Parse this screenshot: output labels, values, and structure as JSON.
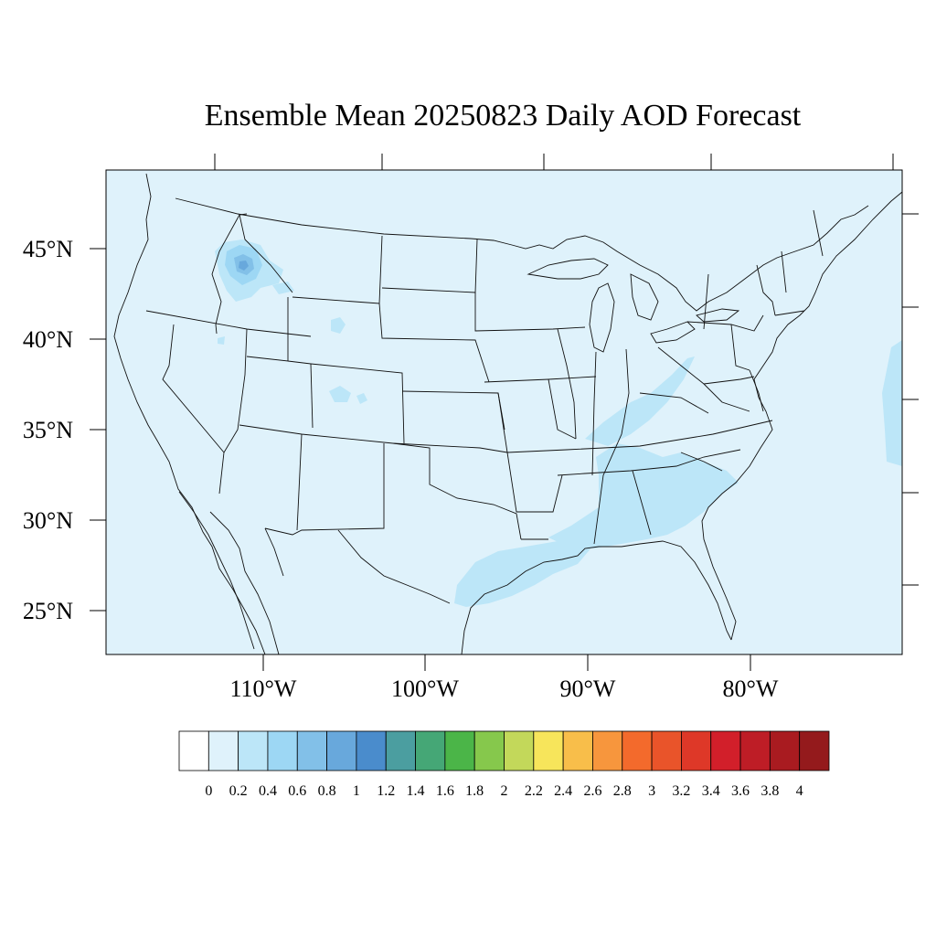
{
  "title": "Ensemble Mean 20250823 Daily AOD Forecast",
  "map": {
    "lat_labels": [
      "45°N",
      "40°N",
      "35°N",
      "30°N",
      "25°N"
    ],
    "lon_labels": [
      "110°W",
      "100°W",
      "90°W",
      "80°W"
    ],
    "background_color": "#dff2fb"
  },
  "colorbar": {
    "labels": [
      "0",
      "0.2",
      "0.4",
      "0.6",
      "0.8",
      "1",
      "1.2",
      "1.4",
      "1.6",
      "1.8",
      "2",
      "2.2",
      "2.4",
      "2.6",
      "2.8",
      "3",
      "3.2",
      "3.4",
      "3.6",
      "3.8",
      "4"
    ],
    "colors": [
      "#ffffff",
      "#dff2fb",
      "#bce6f8",
      "#9dd7f4",
      "#82c0e8",
      "#68a8dc",
      "#4a8ccc",
      "#4b9ea0",
      "#45a776",
      "#4bb548",
      "#86c84c",
      "#c3d85a",
      "#f7e55b",
      "#f8be4a",
      "#f7963d",
      "#f36a2c",
      "#e9542a",
      "#de3828",
      "#d21f2a",
      "#be1d26",
      "#a91b20",
      "#941a1c"
    ]
  },
  "chart_data": {
    "type": "heatmap",
    "title": "Ensemble Mean 20250823 Daily AOD Forecast",
    "x_ticks": [
      "110°W",
      "100°W",
      "90°W",
      "80°W"
    ],
    "y_ticks": [
      "45°N",
      "40°N",
      "35°N",
      "30°N",
      "25°N"
    ],
    "color_levels": [
      0,
      0.2,
      0.4,
      0.6,
      0.8,
      1,
      1.2,
      1.4,
      1.6,
      1.8,
      2,
      2.2,
      2.4,
      2.6,
      2.8,
      3,
      3.2,
      3.4,
      3.6,
      3.8,
      4
    ],
    "regions": [
      {
        "area": "Idaho / western Montana smoke core",
        "aod_range": [
          0.6,
          1.0
        ]
      },
      {
        "area": "Idaho / western Montana surroundings",
        "aod_range": [
          0.2,
          0.6
        ]
      },
      {
        "area": "Texas - Louisiana Gulf coast",
        "aod_range": [
          0.2,
          0.4
        ]
      },
      {
        "area": "Alabama / Georgia / South Carolina",
        "aod_range": [
          0.2,
          0.4
        ]
      },
      {
        "area": "Kentucky / Ohio valley band",
        "aod_range": [
          0.2,
          0.4
        ]
      },
      {
        "area": "Atlantic offshore east edge",
        "aod_range": [
          0.2,
          0.4
        ]
      },
      {
        "area": "Wyoming / Colorado small patches",
        "aod_range": [
          0.2,
          0.4
        ]
      },
      {
        "area": "Background domain",
        "aod_range": [
          0.0,
          0.2
        ]
      }
    ]
  }
}
